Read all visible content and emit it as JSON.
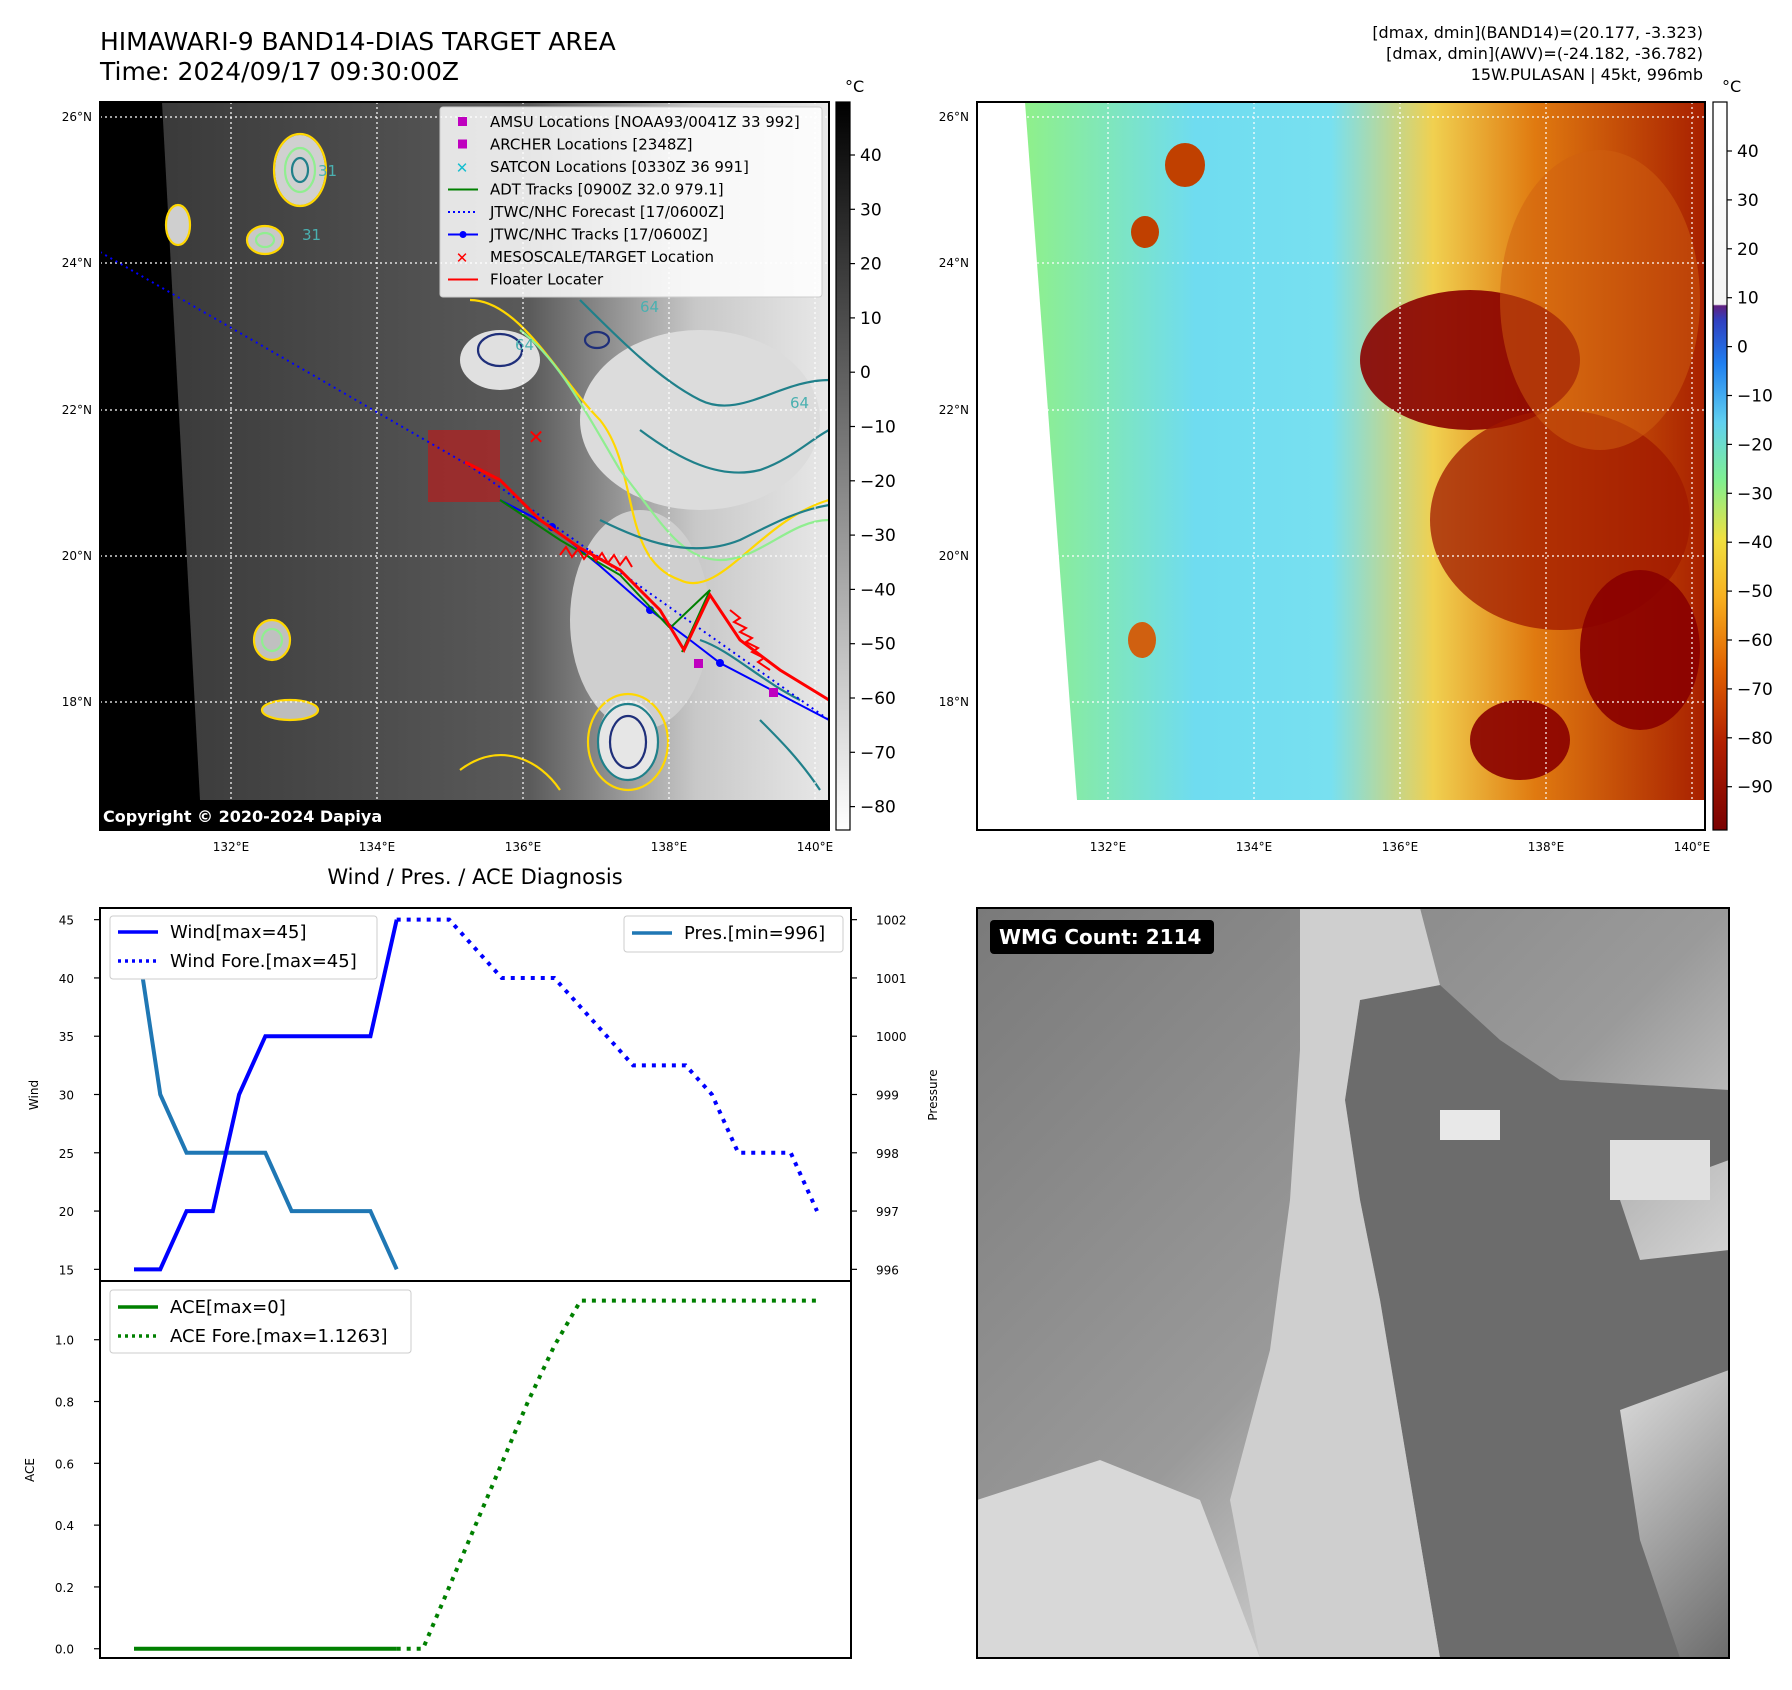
{
  "header": {
    "title": "HIMAWARI-9 BAND14-DIAS TARGET AREA",
    "time": "Time: 2024/09/17 09:30:00Z",
    "info_line1": "[dmax, dmin](BAND14)=(20.177, -3.323)",
    "info_line2": "[dmax, dmin](AWV)=(-24.182, -36.782)",
    "info_line3": "15W.PULASAN | 45kt, 996mb"
  },
  "map_left": {
    "copyright": "Copyright © 2020-2024 Dapiya",
    "lat_ticks": [
      "26°N",
      "24°N",
      "22°N",
      "20°N",
      "18°N"
    ],
    "lon_ticks": [
      "132°E",
      "134°E",
      "136°E",
      "138°E",
      "140°E"
    ],
    "colorbar_unit": "°C",
    "colorbar_ticks": [
      "40",
      "30",
      "20",
      "10",
      "0",
      "−10",
      "−20",
      "−30",
      "−40",
      "−50",
      "−60",
      "−70",
      "−80"
    ],
    "contour_labels": [
      "64",
      "64",
      "64",
      "31",
      "31"
    ],
    "legend": [
      {
        "label": "AMSU Locations [NOAA93/0041Z 33 992]",
        "color": "#bf00bf",
        "kind": "square"
      },
      {
        "label": "ARCHER Locations [2348Z]",
        "color": "#bf00bf",
        "kind": "square"
      },
      {
        "label": "SATCON Locations [0330Z 36 991]",
        "color": "#17becf",
        "kind": "x"
      },
      {
        "label": "ADT Tracks [0900Z 32.0 979.1]",
        "color": "#008000",
        "kind": "line"
      },
      {
        "label": "JTWC/NHC Forecast [17/0600Z]",
        "color": "#0000ff",
        "kind": "dotted"
      },
      {
        "label": "JTWC/NHC Tracks [17/0600Z]",
        "color": "#0000ff",
        "kind": "line-dot"
      },
      {
        "label": "MESOSCALE/TARGET Location",
        "color": "#ff0000",
        "kind": "x"
      },
      {
        "label": "Floater Locater",
        "color": "#ff0000",
        "kind": "line"
      }
    ]
  },
  "map_right": {
    "lat_ticks": [
      "26°N",
      "24°N",
      "22°N",
      "20°N",
      "18°N"
    ],
    "lon_ticks": [
      "132°E",
      "134°E",
      "136°E",
      "138°E",
      "140°E"
    ],
    "colorbar_unit": "°C",
    "colorbar_ticks": [
      "40",
      "30",
      "20",
      "10",
      "0",
      "−10",
      "−20",
      "−30",
      "−40",
      "−50",
      "−60",
      "−70",
      "−80",
      "−90"
    ]
  },
  "diag": {
    "title": "Wind / Pres. / ACE Diagnosis",
    "wind_ylabel": "Wind",
    "pres_ylabel": "Pressure",
    "ace_ylabel": "ACE",
    "legend_wind": "Wind[max=45]",
    "legend_wind_fore": "Wind Fore.[max=45]",
    "legend_pres": "Pres.[min=996]",
    "legend_ace": "ACE[max=0]",
    "legend_ace_fore": "ACE Fore.[max=1.1263]"
  },
  "wmg": {
    "label": "WMG Count: 2114"
  },
  "chart_data": [
    {
      "type": "line",
      "title": "Wind / Pres. / ACE Diagnosis",
      "ylabel": "Wind",
      "ylim": [
        14,
        46
      ],
      "yticks": [
        15,
        20,
        25,
        30,
        35,
        40,
        45
      ],
      "xlim": [
        0,
        27
      ],
      "series": [
        {
          "name": "Wind[max=45]",
          "style": "solid",
          "color": "#0000ff",
          "x": [
            0,
            1,
            2,
            3,
            4,
            5,
            6,
            7,
            8,
            9,
            10
          ],
          "values": [
            15,
            15,
            20,
            20,
            30,
            35,
            35,
            35,
            35,
            35,
            45
          ]
        },
        {
          "name": "Wind Fore.[max=45]",
          "style": "dotted",
          "color": "#0000ff",
          "x": [
            10,
            11,
            12,
            13,
            14,
            15,
            16,
            17,
            18,
            19,
            20,
            21,
            22,
            23,
            24,
            25,
            26
          ],
          "values": [
            45,
            45,
            45,
            42.5,
            40,
            40,
            40,
            37.5,
            35,
            32.5,
            32.5,
            32.5,
            30,
            25,
            25,
            25,
            20
          ]
        }
      ]
    },
    {
      "type": "line",
      "ylabel": "Pressure",
      "ylim": [
        995.8,
        1002.2
      ],
      "yticks": [
        996,
        997,
        998,
        999,
        1000,
        1001,
        1002
      ],
      "xlim": [
        0,
        27
      ],
      "series": [
        {
          "name": "Pres.[min=996]",
          "style": "solid",
          "color": "#1f77b4",
          "x": [
            0,
            1,
            2,
            3,
            4,
            5,
            6,
            7,
            8,
            9,
            10
          ],
          "values": [
            1002,
            999,
            998,
            998,
            998,
            998,
            997,
            997,
            997,
            997,
            996
          ]
        }
      ]
    },
    {
      "type": "line",
      "ylabel": "ACE",
      "ylim": [
        -0.03,
        1.19
      ],
      "yticks": [
        0.0,
        0.2,
        0.4,
        0.6,
        0.8,
        1.0
      ],
      "xlim": [
        0,
        27
      ],
      "series": [
        {
          "name": "ACE[max=0]",
          "style": "solid",
          "color": "#008000",
          "x": [
            0,
            1,
            2,
            3,
            4,
            5,
            6,
            7,
            8,
            9,
            10
          ],
          "values": [
            0,
            0,
            0,
            0,
            0,
            0,
            0,
            0,
            0,
            0,
            0
          ]
        },
        {
          "name": "ACE Fore.[max=1.1263]",
          "style": "dotted",
          "color": "#008000",
          "x": [
            10,
            11,
            12,
            13,
            14,
            15,
            16,
            17,
            18,
            19,
            20,
            21,
            22,
            23,
            24,
            25,
            26
          ],
          "values": [
            0,
            0,
            0.2,
            0.4,
            0.6,
            0.8,
            0.98,
            1.1263,
            1.1263,
            1.1263,
            1.1263,
            1.1263,
            1.1263,
            1.1263,
            1.1263,
            1.1263,
            1.1263
          ]
        }
      ]
    }
  ]
}
